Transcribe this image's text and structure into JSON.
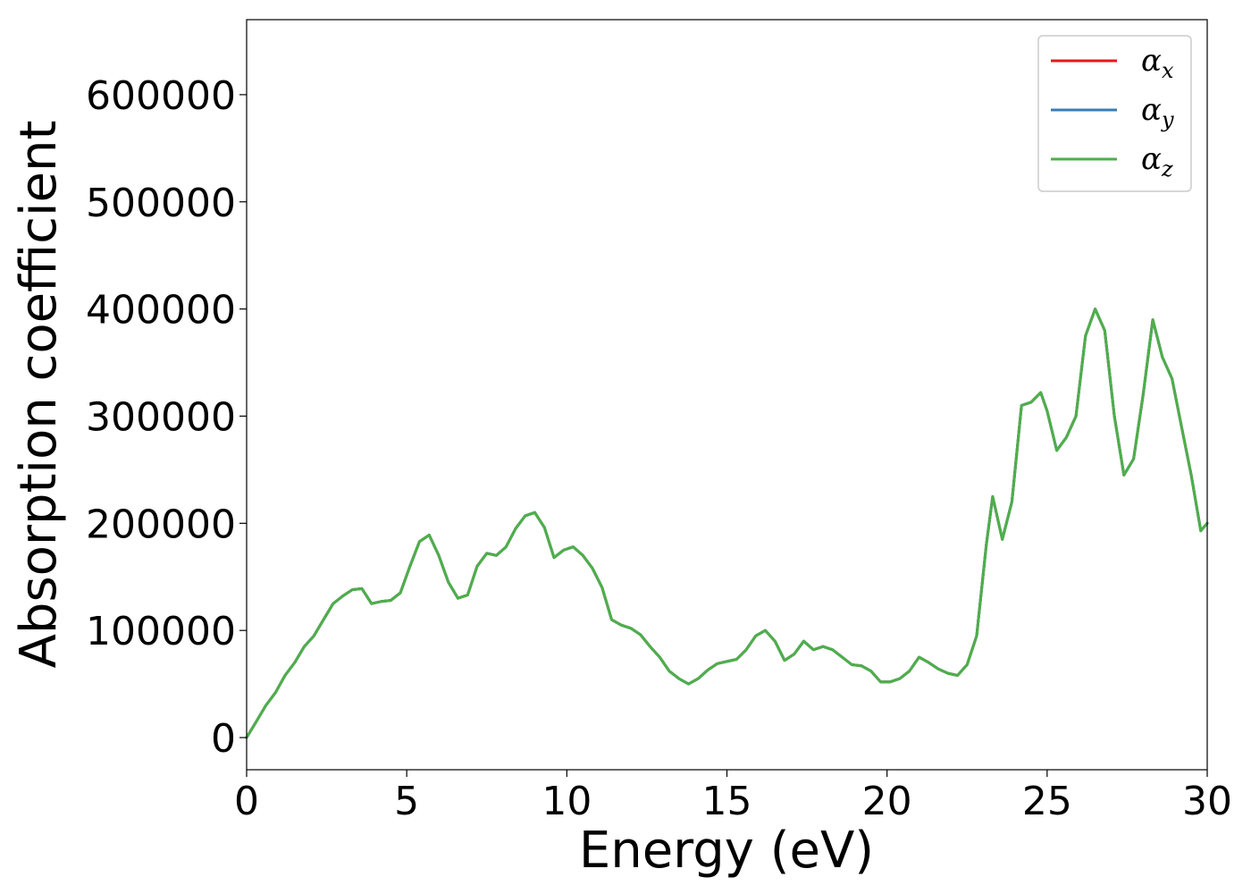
{
  "chart_data": {
    "type": "line",
    "xlabel": "Energy (eV)",
    "ylabel": "Absorption coefficient",
    "xlim": [
      0,
      30
    ],
    "ylim": [
      -30000,
      670000
    ],
    "xticks": [
      0,
      5,
      10,
      15,
      20,
      25,
      30
    ],
    "xtick_labels": [
      "0",
      "5",
      "10",
      "15",
      "20",
      "25",
      "30"
    ],
    "yticks": [
      0,
      100000,
      200000,
      300000,
      400000,
      500000,
      600000
    ],
    "ytick_labels": [
      "0",
      "100000",
      "200000",
      "300000",
      "400000",
      "500000",
      "600000"
    ],
    "grid": false,
    "legend": "top-right",
    "x": [
      0,
      0.3,
      0.6,
      0.9,
      1.2,
      1.5,
      1.8,
      2.1,
      2.4,
      2.7,
      3.0,
      3.3,
      3.6,
      3.9,
      4.2,
      4.5,
      4.8,
      5.1,
      5.4,
      5.7,
      6.0,
      6.3,
      6.6,
      6.9,
      7.2,
      7.5,
      7.8,
      8.1,
      8.4,
      8.7,
      9.0,
      9.3,
      9.6,
      9.9,
      10.2,
      10.5,
      10.8,
      11.1,
      11.4,
      11.7,
      12.0,
      12.3,
      12.6,
      12.9,
      13.2,
      13.5,
      13.8,
      14.1,
      14.4,
      14.7,
      15.0,
      15.3,
      15.6,
      15.9,
      16.2,
      16.5,
      16.8,
      17.1,
      17.4,
      17.7,
      18.0,
      18.3,
      18.6,
      18.9,
      19.2,
      19.5,
      19.8,
      20.1,
      20.4,
      20.7,
      21.0,
      21.3,
      21.6,
      21.9,
      22.2,
      22.5,
      22.8,
      23.1,
      23.3,
      23.6,
      23.9,
      24.2,
      24.5,
      24.8,
      25.0,
      25.3,
      25.6,
      25.9,
      26.2,
      26.5,
      26.8,
      27.1,
      27.4,
      27.7,
      28.0,
      28.3,
      28.6,
      28.9,
      29.2,
      29.5,
      29.8,
      30.0
    ],
    "series": [
      {
        "name": "α_x",
        "color": "#e41a1c",
        "values": [
          0,
          15000,
          30000,
          42000,
          58000,
          70000,
          85000,
          95000,
          110000,
          125000,
          132000,
          138000,
          139000,
          125000,
          127000,
          128000,
          135000,
          160000,
          183000,
          189000,
          170000,
          145000,
          130000,
          133000,
          160000,
          172000,
          170000,
          178000,
          195000,
          207000,
          210000,
          196000,
          168000,
          175000,
          178000,
          170000,
          158000,
          140000,
          110000,
          105000,
          102000,
          96000,
          85000,
          75000,
          62000,
          55000,
          50000,
          55000,
          63000,
          69000,
          71000,
          73000,
          82000,
          95000,
          100000,
          90000,
          72000,
          78000,
          90000,
          82000,
          85000,
          82000,
          75000,
          68000,
          67000,
          62000,
          52000,
          52000,
          55000,
          62000,
          75000,
          70000,
          64000,
          60000,
          58000,
          68000,
          95000,
          180000,
          225000,
          185000,
          220000,
          310000,
          313000,
          322000,
          305000,
          268000,
          280000,
          300000,
          375000,
          400000,
          380000,
          300000,
          245000,
          260000,
          320000,
          390000,
          355000,
          335000,
          290000,
          245000,
          193000,
          200000
        ]
      },
      {
        "name": "α_y",
        "color": "#377eb8",
        "values": [
          0,
          15000,
          30000,
          42000,
          58000,
          70000,
          85000,
          95000,
          110000,
          125000,
          132000,
          138000,
          139000,
          125000,
          127000,
          128000,
          135000,
          160000,
          183000,
          189000,
          170000,
          145000,
          130000,
          133000,
          160000,
          172000,
          170000,
          178000,
          195000,
          207000,
          210000,
          196000,
          168000,
          175000,
          178000,
          170000,
          158000,
          140000,
          110000,
          105000,
          102000,
          96000,
          85000,
          75000,
          62000,
          55000,
          50000,
          55000,
          63000,
          69000,
          71000,
          73000,
          82000,
          95000,
          100000,
          90000,
          72000,
          78000,
          90000,
          82000,
          85000,
          82000,
          75000,
          68000,
          67000,
          62000,
          52000,
          52000,
          55000,
          62000,
          75000,
          70000,
          64000,
          60000,
          58000,
          68000,
          95000,
          180000,
          225000,
          185000,
          220000,
          310000,
          313000,
          322000,
          305000,
          268000,
          280000,
          300000,
          375000,
          400000,
          380000,
          300000,
          245000,
          260000,
          320000,
          390000,
          355000,
          335000,
          290000,
          245000,
          193000,
          200000
        ]
      },
      {
        "name": "α_z",
        "color": "#4daf4a",
        "values": [
          0,
          15000,
          30000,
          42000,
          58000,
          70000,
          85000,
          95000,
          110000,
          125000,
          132000,
          138000,
          139000,
          125000,
          127000,
          128000,
          135000,
          160000,
          183000,
          189000,
          170000,
          145000,
          130000,
          133000,
          160000,
          172000,
          170000,
          178000,
          195000,
          207000,
          210000,
          196000,
          168000,
          175000,
          178000,
          170000,
          158000,
          140000,
          110000,
          105000,
          102000,
          96000,
          85000,
          75000,
          62000,
          55000,
          50000,
          55000,
          63000,
          69000,
          71000,
          73000,
          82000,
          95000,
          100000,
          90000,
          72000,
          78000,
          90000,
          82000,
          85000,
          82000,
          75000,
          68000,
          67000,
          62000,
          52000,
          52000,
          55000,
          62000,
          75000,
          70000,
          64000,
          60000,
          58000,
          68000,
          95000,
          180000,
          225000,
          185000,
          220000,
          310000,
          313000,
          322000,
          305000,
          268000,
          280000,
          300000,
          375000,
          400000,
          380000,
          300000,
          245000,
          260000,
          320000,
          390000,
          355000,
          335000,
          290000,
          245000,
          193000,
          200000
        ]
      }
    ]
  },
  "legend": {
    "entries": [
      {
        "symbol": "α",
        "sub": "x"
      },
      {
        "symbol": "α",
        "sub": "y"
      },
      {
        "symbol": "α",
        "sub": "z"
      }
    ]
  }
}
